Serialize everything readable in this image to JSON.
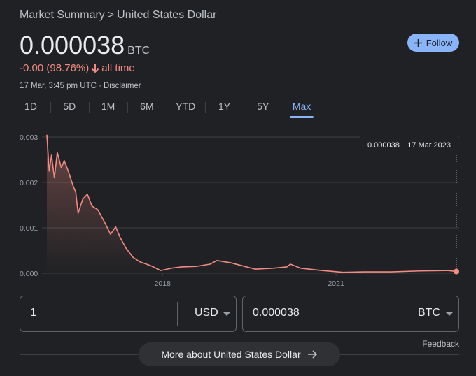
{
  "header": {
    "breadcrumb_root": "Market Summary",
    "separator": ">",
    "breadcrumb_current": "United States Dollar"
  },
  "price": {
    "value": "0.000038",
    "unit": "BTC"
  },
  "change": {
    "text": "-0.00 (98.76%)",
    "period": "all time"
  },
  "timestamp": "17 Mar, 3:45 pm UTC ·",
  "disclaimer": "Disclaimer",
  "follow": "Follow",
  "ranges": {
    "labels": [
      "1D",
      "5D",
      "1M",
      "6M",
      "YTD",
      "1Y",
      "5Y",
      "Max"
    ],
    "selected_index": 7
  },
  "chart_data": {
    "type": "line",
    "x": [
      2016.0,
      2016.04,
      2016.08,
      2016.13,
      2016.18,
      2016.25,
      2016.3,
      2016.37,
      2016.45,
      2016.5,
      2016.54,
      2016.62,
      2016.7,
      2016.78,
      2016.88,
      2017.0,
      2017.1,
      2017.19,
      2017.27,
      2017.37,
      2017.49,
      2017.61,
      2017.79,
      2017.97,
      2018.15,
      2018.33,
      2018.58,
      2018.82,
      2018.94,
      2019.18,
      2019.36,
      2019.6,
      2019.91,
      2020.15,
      2020.21,
      2020.39,
      2020.75,
      2021.12,
      2021.48,
      2021.96,
      2022.45,
      2022.93,
      2023.08
    ],
    "series": [
      {
        "color": "#f28b82",
        "values": [
          0.00305,
          0.00225,
          0.0026,
          0.0021,
          0.00266,
          0.00232,
          0.00248,
          0.00225,
          0.00194,
          0.00178,
          0.00132,
          0.00163,
          0.00174,
          0.00148,
          0.0014,
          0.00112,
          0.00086,
          0.00102,
          0.00078,
          0.00055,
          0.00035,
          0.00025,
          0.00017,
          6e-05,
          0.00011,
          0.00014,
          0.00015,
          0.0002,
          0.00028,
          0.00023,
          0.00017,
          9e-05,
          0.00011,
          0.00014,
          0.0002,
          0.00011,
          6e-05,
          2e-05,
          3e-05,
          3e-05,
          5e-05,
          6e-05,
          3.8e-05
        ]
      }
    ],
    "xlim": [
      2016.0,
      2023.08
    ],
    "xticks": [
      2018,
      2021
    ],
    "ylim": [
      0,
      0.003
    ],
    "yticks": [
      {
        "value": 0,
        "label": "0.000"
      },
      0.001,
      0.002,
      0.003
    ],
    "grid": true,
    "tooltip": {
      "value": "0.000038",
      "date": "17 Mar 2023"
    }
  },
  "converter": {
    "from_amount": "1",
    "from_currency": "USD",
    "to_amount": "0.000038",
    "to_currency": "BTC"
  },
  "feedback": "Feedback",
  "more_button": "More about United States Dollar"
}
